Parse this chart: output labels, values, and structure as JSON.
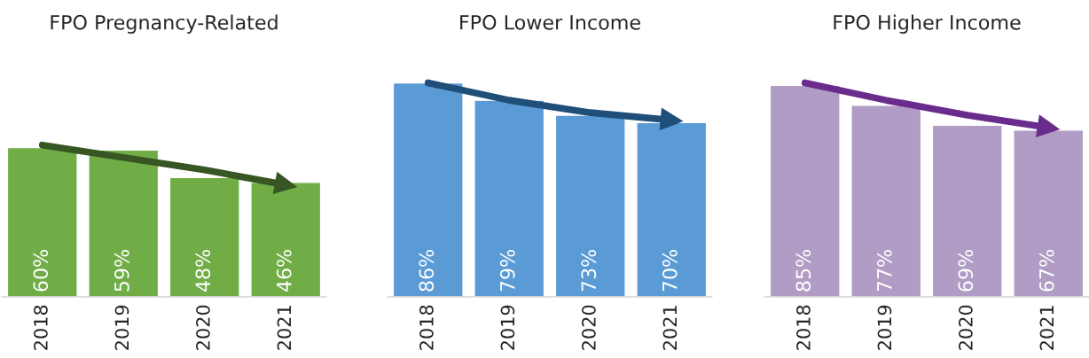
{
  "chart_data": [
    {
      "type": "bar",
      "title": "FPO Pregnancy-Related",
      "categories": [
        "2018",
        "2019",
        "2020",
        "2021"
      ],
      "legend": false,
      "grid": false,
      "series": [
        {
          "color": "#70ad47",
          "values": [
            60,
            59,
            48,
            46
          ],
          "value_labels": [
            "60%",
            "59%",
            "48%",
            "46%"
          ]
        },
        {
          "type": "line",
          "color": "#375623",
          "values": [
            61,
            56,
            51,
            45
          ]
        }
      ]
    },
    {
      "type": "bar",
      "title": "FPO Lower Income",
      "categories": [
        "2018",
        "2019",
        "2020",
        "2021"
      ],
      "legend": false,
      "grid": false,
      "series": [
        {
          "color": "#5b9bd5",
          "values": [
            86,
            79,
            73,
            70
          ],
          "value_labels": [
            "86%",
            "79%",
            "73%",
            "70%"
          ]
        },
        {
          "type": "line",
          "color": "#1f4e79",
          "values": [
            86,
            79,
            74,
            71
          ]
        }
      ]
    },
    {
      "type": "bar",
      "title": "FPO Higher Income",
      "categories": [
        "2018",
        "2019",
        "2020",
        "2021"
      ],
      "legend": false,
      "grid": false,
      "series": [
        {
          "color": "#b09cc4",
          "values": [
            85,
            77,
            69,
            67
          ],
          "value_labels": [
            "85%",
            "77%",
            "69%",
            "67%"
          ]
        },
        {
          "type": "line",
          "color": "#6a2c8c",
          "values": [
            86,
            79,
            73,
            68
          ]
        }
      ]
    }
  ]
}
